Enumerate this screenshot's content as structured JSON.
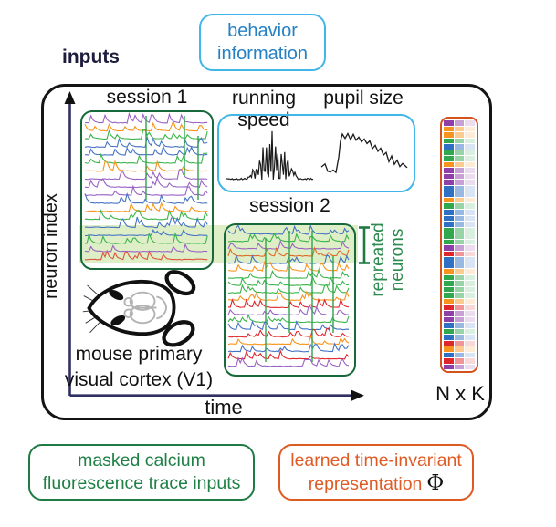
{
  "header": {
    "inputs_label": "inputs",
    "behavior_box": {
      "line1": "behavior",
      "line2": "information",
      "border_color": "#41b6e8",
      "text_color": "#2581c4"
    }
  },
  "panel": {
    "y_axis_label": "neuron index",
    "x_axis_label": "time",
    "axis_color": "#2f2f62",
    "session1": {
      "label": "session 1",
      "border_color": "#17693b",
      "trace_colors": [
        "#9a63c3",
        "#f7941d",
        "#3bb54a",
        "#4472c4",
        "#4472c4",
        "#3bb54a",
        "#f7941d",
        "#9a63c3",
        "#9a63c3",
        "#9a63c3",
        "#4472c4",
        "#f7941d",
        "#3bb54a",
        "#4472c4",
        "#4472c4",
        "#3bb54a",
        "#9a63c3",
        "#e0533c"
      ]
    },
    "session2": {
      "label": "session 2",
      "border_color": "#17693b",
      "trace_colors": [
        "#4472c4",
        "#3bb54a",
        "#9a63c3",
        "#e06a2a",
        "#4472c4",
        "#f7941d",
        "#3bb54a",
        "#3bb54a",
        "#3bb54a",
        "#f7941d",
        "#e0262d",
        "#9a63c3",
        "#3bb54a",
        "#4472c4",
        "#e0262d",
        "#f7941d",
        "#4472c4",
        "#e0262d",
        "#9a63c3"
      ]
    },
    "behavior_plots": {
      "label_running": "running speed",
      "label_pupil": "pupil size",
      "border_color": "#41b6e8",
      "trace_color": "#1a1a1a"
    },
    "repeated_neurons": {
      "line1": "repreated",
      "line2": "neurons",
      "color": "#2e8b4f",
      "band_color": "rgba(176,214,118,0.42)"
    },
    "spike_color": "#2fa34c",
    "mouse": {
      "caption_line1": "mouse primary",
      "caption_line2": "visual cortex (V1)"
    },
    "matrix": {
      "label": "N x K",
      "border_color": "#d4531c",
      "row_colors": [
        "#8e3fa8",
        "#f7941d",
        "#f7941d",
        "#2fa84e",
        "#2f6fc4",
        "#2fa84e",
        "#2fa84e",
        "#f7941d",
        "#8e3fa8",
        "#8e3fa8",
        "#8e3fa8",
        "#2f6fc4",
        "#2f6fc4",
        "#f7941d",
        "#2fa84e",
        "#2f6fc4",
        "#2f6fc4",
        "#2f6fc4",
        "#2fa84e",
        "#2fa84e",
        "#2fa84e",
        "#8e3fa8",
        "#e0262d",
        "#2f6fc4",
        "#2f6fc4",
        "#f7941d",
        "#2fa84e",
        "#2fa84e",
        "#2fa84e",
        "#2fa84e",
        "#f7941d",
        "#e0262d",
        "#8e3fa8",
        "#8e3fa8",
        "#2f6fc4",
        "#2fa84e",
        "#2f6fc4",
        "#e0262d",
        "#f7941d",
        "#2f6fc4",
        "#e0262d",
        "#8e3fa8"
      ]
    }
  },
  "legend": {
    "masked": {
      "line1": "masked calcium",
      "line2": "fluorescence trace inputs",
      "color": "#1f8045",
      "border_color": "#1f7a43"
    },
    "learned": {
      "line1": "learned time-invariant",
      "line2": "representation",
      "phi": "Φ",
      "color": "#e05b24",
      "border_color": "#dd5a21"
    }
  }
}
